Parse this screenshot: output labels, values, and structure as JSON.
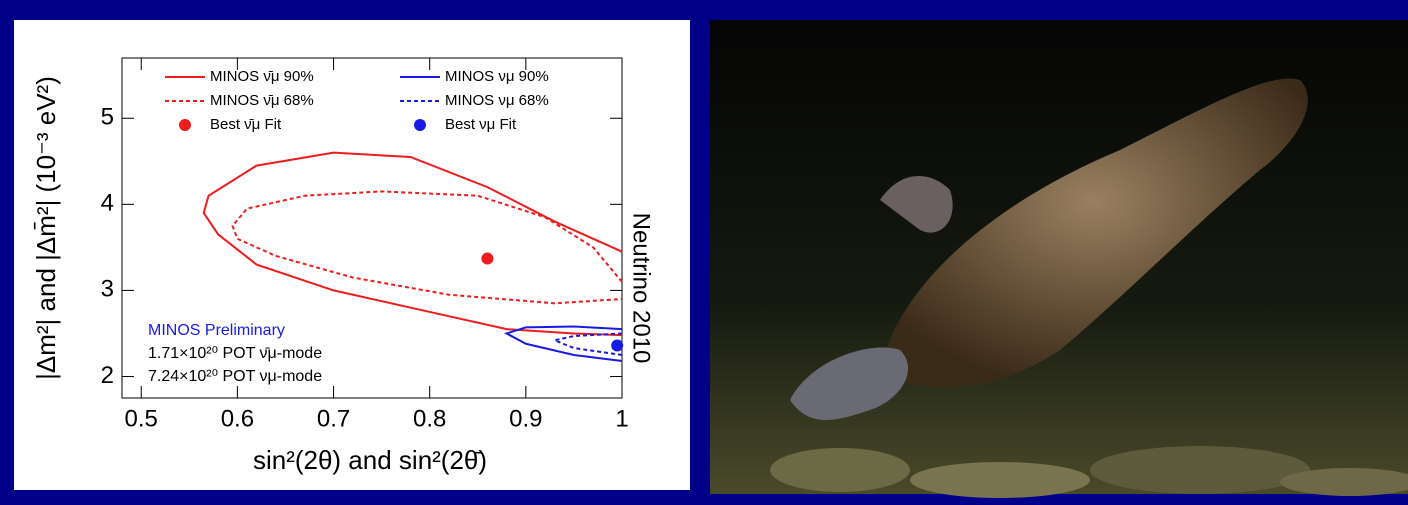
{
  "chart_data": {
    "type": "contour",
    "x_label": "sin²(2θ) and sin²(2θ̄)",
    "y_label": "|Δm²| and |Δm̄²| (10⁻³ eV²)",
    "xlim": [
      0.48,
      1.0
    ],
    "ylim": [
      1.75,
      5.7
    ],
    "xticks": [
      0.5,
      0.6,
      0.7,
      0.8,
      0.9,
      1
    ],
    "yticks": [
      2,
      3,
      4,
      5
    ],
    "annotations": [
      "MINOS Preliminary",
      "1.71×10²⁰ POT ν̄μ-mode",
      "7.24×10²⁰ POT νμ-mode"
    ],
    "side_label": "Neutrino 2010",
    "series": [
      {
        "name": "MINOS ν̄μ 90%",
        "color": "#ee1c1c",
        "style": "solid",
        "x": [
          1.0,
          0.93,
          0.86,
          0.78,
          0.7,
          0.62,
          0.57,
          0.565,
          0.58,
          0.62,
          0.7,
          0.8,
          0.88,
          0.95,
          1.0
        ],
        "y": [
          3.45,
          3.8,
          4.2,
          4.55,
          4.6,
          4.45,
          4.1,
          3.9,
          3.65,
          3.3,
          3.0,
          2.75,
          2.55,
          2.5,
          2.48
        ]
      },
      {
        "name": "MINOS ν̄μ 68%",
        "color": "#ee1c1c",
        "style": "dashed",
        "x": [
          1.0,
          0.97,
          0.92,
          0.85,
          0.75,
          0.67,
          0.61,
          0.595,
          0.6,
          0.64,
          0.72,
          0.82,
          0.93,
          1.0
        ],
        "y": [
          3.1,
          3.5,
          3.85,
          4.1,
          4.15,
          4.1,
          3.95,
          3.75,
          3.6,
          3.4,
          3.15,
          2.95,
          2.85,
          2.9
        ]
      },
      {
        "name": "MINOS νμ 90%",
        "color": "#1a1ae6",
        "style": "solid",
        "x": [
          1.0,
          0.95,
          0.9,
          0.88,
          0.9,
          0.95,
          1.0
        ],
        "y": [
          2.55,
          2.58,
          2.57,
          2.5,
          2.38,
          2.25,
          2.18
        ]
      },
      {
        "name": "MINOS νμ 68%",
        "color": "#1a1ae6",
        "style": "dashed",
        "x": [
          1.0,
          0.95,
          0.93,
          0.95,
          1.0
        ],
        "y": [
          2.5,
          2.47,
          2.42,
          2.33,
          2.25
        ]
      }
    ],
    "points": [
      {
        "name": "Best ν̄μ Fit",
        "color": "#ee1c1c",
        "x": 0.86,
        "y": 3.37
      },
      {
        "name": "Best νμ Fit",
        "color": "#1a1ae6",
        "x": 0.995,
        "y": 2.36
      }
    ]
  }
}
